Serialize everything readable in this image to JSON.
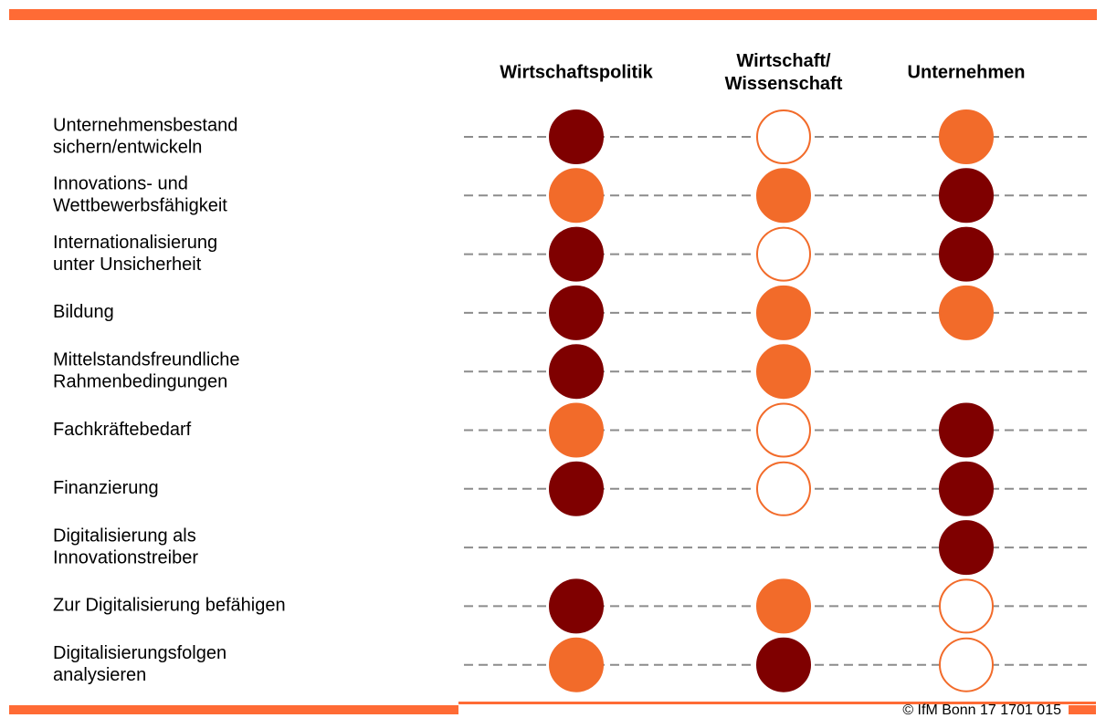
{
  "header": {
    "columns": [
      [
        "Wirtschaftspolitik"
      ],
      [
        "Wirtschaft/",
        "Wissenschaft"
      ],
      [
        "Unternehmen"
      ]
    ]
  },
  "legend_colors": {
    "high": "#7f0000",
    "medium": "#f26b2a",
    "low": "#ffffff"
  },
  "rows": [
    {
      "label": [
        "Unternehmensbestand",
        "sichern/entwickeln"
      ],
      "cells": [
        "high",
        "low",
        "medium"
      ]
    },
    {
      "label": [
        "Innovations- und",
        "Wettbewerbsfähigkeit"
      ],
      "cells": [
        "medium",
        "medium",
        "high"
      ]
    },
    {
      "label": [
        "Internationalisierung",
        "unter Unsicherheit"
      ],
      "cells": [
        "high",
        "low",
        "high"
      ]
    },
    {
      "label": [
        "Bildung"
      ],
      "cells": [
        "high",
        "medium",
        "medium"
      ]
    },
    {
      "label": [
        "Mittelstandsfreundliche",
        "Rahmenbedingungen"
      ],
      "cells": [
        "high",
        "medium",
        null
      ]
    },
    {
      "label": [
        "Fachkräftebedarf"
      ],
      "cells": [
        "medium",
        "low",
        "high"
      ]
    },
    {
      "label": [
        "Finanzierung"
      ],
      "cells": [
        "high",
        "low",
        "high"
      ]
    },
    {
      "label": [
        "Digitalisierung als",
        "Innovationstreiber"
      ],
      "cells": [
        null,
        null,
        "high"
      ]
    },
    {
      "label": [
        "Zur Digitalisierung befähigen"
      ],
      "cells": [
        "high",
        "medium",
        "low"
      ]
    },
    {
      "label": [
        "Digitalisierungsfolgen",
        "analysieren"
      ],
      "cells": [
        "medium",
        "high",
        "low"
      ]
    }
  ],
  "footer": {
    "copyright": "© IfM Bonn 17 1701 015"
  }
}
